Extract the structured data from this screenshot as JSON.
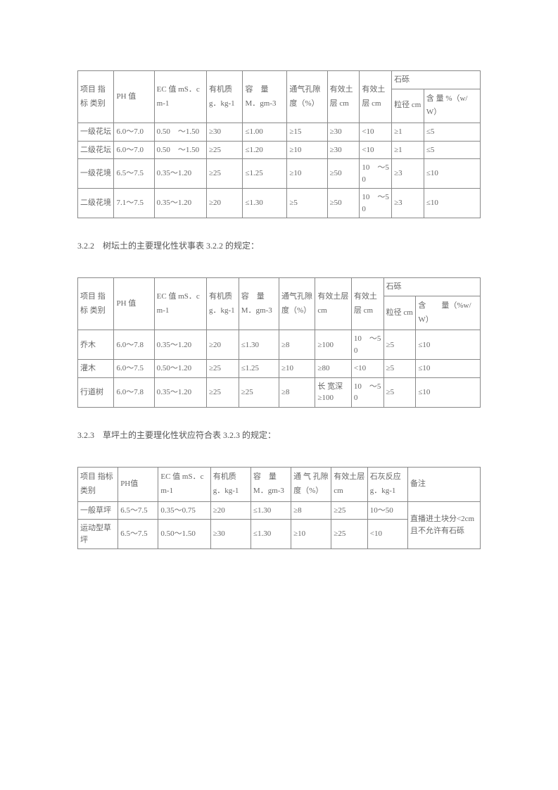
{
  "table1": {
    "headerRow1": [
      "",
      "",
      "",
      "",
      "",
      "",
      "",
      "",
      "石砾"
    ],
    "headerRow2": [
      "项目\n指标\n类别",
      "PH 值",
      "EC 值 mS．cm-1",
      "有机质 g．kg-1",
      "容　量 M．gm-3",
      "通气孔隙　度（%）",
      "有效土层 cm",
      "有效土层 cm",
      "粒径 cm",
      "含 量 %（w/W）"
    ],
    "rows": [
      [
        "一级花坛",
        "6.0～7.0",
        "0.50　～1.50",
        "≥30",
        "≤1.00",
        "≥15",
        "≥30",
        "<10",
        "≥1",
        "≤5"
      ],
      [
        "二级花坛",
        "6.0～7.0",
        "0.50　～1.50",
        "≥25",
        "≤1.20",
        "≥10",
        "≥30",
        "<10",
        "≥1",
        "≤5"
      ],
      [
        "一级花境",
        "6.5～7.5",
        "0.35～1.20",
        "≥25",
        "≤1.25",
        "≥10",
        "≥50",
        "10　～50",
        "≥3",
        "≤10"
      ],
      [
        "二级花境",
        "7.1～7.5",
        "0.35～1.20",
        "≥20",
        "≤1.30",
        "≥5",
        "≥50",
        "10　～50",
        "≥3",
        "≤10"
      ]
    ]
  },
  "caption1": "3.2.2　树坛土的主要理化性状事表 3.2.2 的规定：",
  "table2": {
    "headerRow1": [
      "",
      "",
      "",
      "",
      "",
      "",
      "",
      "",
      "石砾"
    ],
    "headerRow2": [
      "项目\n指标\n类别",
      "PH 值",
      "EC 值 mS．cm-1",
      "有机质 g．kg-1",
      "容　量 M．gm-3",
      "通气孔隙　度（%）",
      "有效土层 cm",
      "有效土层 cm",
      "粒径 cm",
      "含　　量（%w/W）"
    ],
    "rows": [
      [
        "乔木",
        "6.0～7.8",
        "0.35～1.20",
        "≥20",
        "≤1.30",
        "≥8",
        "≥100",
        "10　～50",
        "≥5",
        "≤10"
      ],
      [
        "灌木",
        "6.0～7.5",
        "0.50～1.20",
        "≥25",
        "≤1.25",
        "≥10",
        "≥80",
        "<10",
        "≥5",
        "≤10"
      ],
      [
        "行道树",
        "6.0～7.8",
        "0.35～1.20",
        "≥25",
        "≥25",
        "≥8",
        "长 宽深　≥100",
        "10　～50",
        "≥5",
        "≤10"
      ]
    ]
  },
  "caption2": "3.2.3　草坪土的主要理化性状应符合表 3.2.3 的规定：",
  "table3": {
    "headerRow": [
      "项目\n指标\n类别",
      "PH值",
      "EC 值 mS．cm-1",
      "有机质 g．kg-1",
      "容　量 M．gm-3",
      "通 气 孔隙度（%）",
      "有效土层 cm",
      "石灰反应 g．kg-1",
      "备注"
    ],
    "rows": [
      [
        "一般草坪",
        "6.5～7.5",
        "0.35～0.75",
        "≥20",
        "≤1.30",
        "≥8",
        "≥25",
        "10～50"
      ],
      [
        "运动型草坪",
        "6.5～7.5",
        "0.50～1.50",
        "≥30",
        "≤1.30",
        "≥10",
        "≥25",
        "<10"
      ]
    ],
    "note": "直播进土块分<2cm 且不允许有石砾"
  }
}
